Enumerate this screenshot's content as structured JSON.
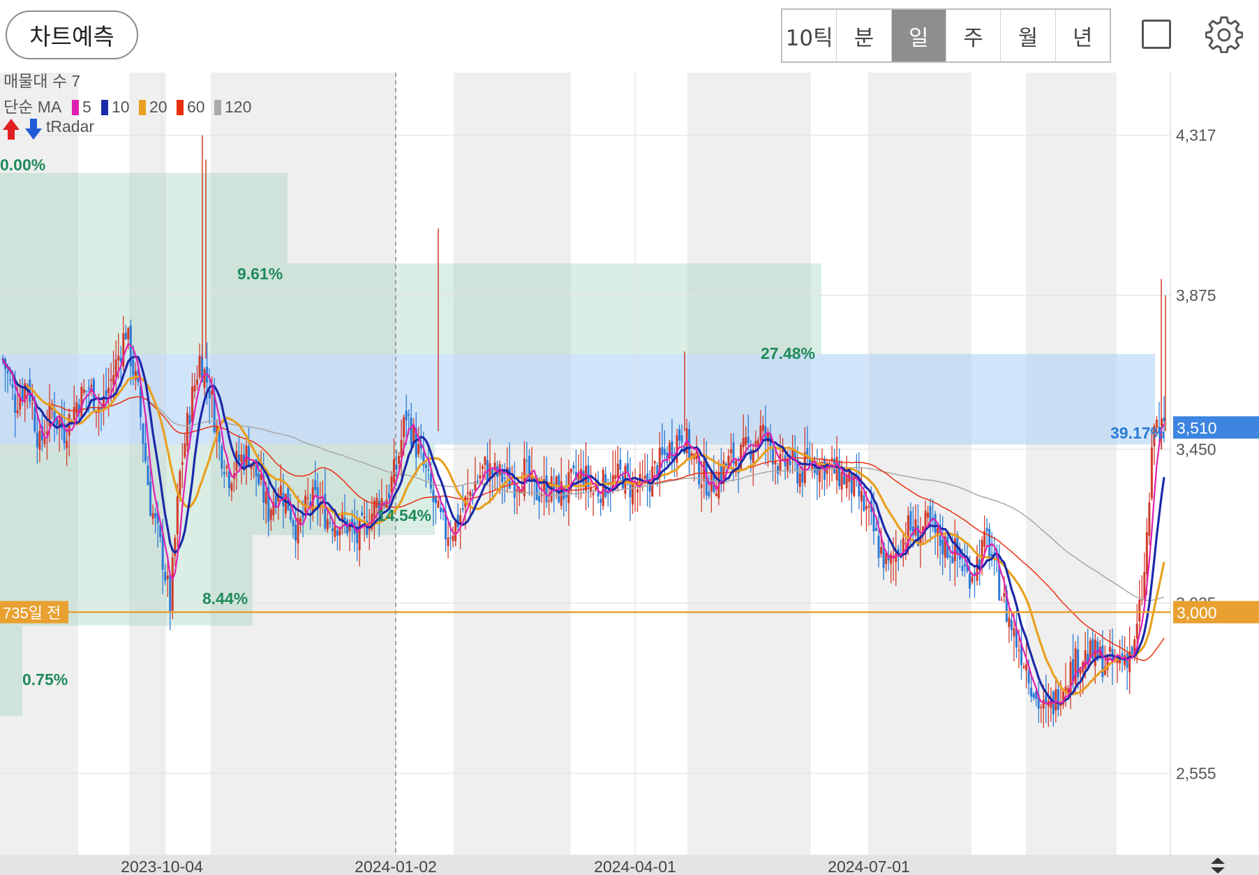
{
  "header": {
    "forecast_button": "차트예측",
    "periods": [
      {
        "label": "10틱",
        "active": false
      },
      {
        "label": "분",
        "active": false
      },
      {
        "label": "일",
        "active": true
      },
      {
        "label": "주",
        "active": false
      },
      {
        "label": "월",
        "active": false
      },
      {
        "label": "년",
        "active": false
      }
    ],
    "icons": {
      "checkbox": "square-icon",
      "settings": "gear-icon"
    }
  },
  "chart_data": {
    "type": "candlestick",
    "indicators": {
      "volume_profile": "매물대 수 7",
      "ma_label": "단순 MA",
      "ma_periods": [
        {
          "period": "5",
          "color": "#e020b0"
        },
        {
          "period": "10",
          "color": "#1a2aa8"
        },
        {
          "period": "20",
          "color": "#e8a020"
        },
        {
          "period": "60",
          "color": "#e83010"
        },
        {
          "period": "120",
          "color": "#aaaaaa"
        }
      ],
      "tradar": "tRadar"
    },
    "y_axis": {
      "ticks": [
        4317,
        3875,
        3450,
        3025,
        2555
      ],
      "tick_labels": [
        "4,317",
        "3,875",
        "3,450",
        "3,025",
        "2,555"
      ],
      "range": [
        2330,
        4490
      ]
    },
    "x_axis": {
      "tick_labels": [
        "2023-10-04",
        "2024-01-02",
        "2024-04-01",
        "2024-07-01"
      ]
    },
    "current_price": {
      "value": 3510,
      "label": "3,510",
      "color": "#3d85e0"
    },
    "reference_line": {
      "value": 3000,
      "label": "3,000",
      "tag": "735일 전",
      "color": "#e8a030"
    },
    "volume_profile_zones": [
      {
        "low": 3963,
        "high": 4213,
        "pct": "9.61%"
      },
      {
        "low": 3713,
        "high": 3963,
        "pct": "27.48%"
      },
      {
        "low": 3463,
        "high": 3713,
        "pct": "39.17%",
        "highlight": true
      },
      {
        "low": 3213,
        "high": 3463,
        "pct": "14.54%"
      },
      {
        "low": 2963,
        "high": 3213,
        "pct": "8.44%"
      },
      {
        "low": 2713,
        "high": 2963,
        "pct": "0.75%"
      }
    ],
    "top_pct": "0.00%",
    "price_path": [
      [
        0,
        3700
      ],
      [
        5,
        3580
      ],
      [
        10,
        3640
      ],
      [
        15,
        3460
      ],
      [
        20,
        3560
      ],
      [
        25,
        3500
      ],
      [
        30,
        3580
      ],
      [
        35,
        3620
      ],
      [
        40,
        3560
      ],
      [
        45,
        3660
      ],
      [
        50,
        3780
      ],
      [
        55,
        3600
      ],
      [
        60,
        3300
      ],
      [
        65,
        3150
      ],
      [
        68,
        3020
      ],
      [
        72,
        3380
      ],
      [
        76,
        3560
      ],
      [
        80,
        3700
      ],
      [
        84,
        3620
      ],
      [
        88,
        3460
      ],
      [
        92,
        3380
      ],
      [
        96,
        3420
      ],
      [
        100,
        3440
      ],
      [
        104,
        3360
      ],
      [
        108,
        3280
      ],
      [
        112,
        3350
      ],
      [
        116,
        3300
      ],
      [
        120,
        3220
      ],
      [
        124,
        3300
      ],
      [
        128,
        3310
      ],
      [
        132,
        3260
      ],
      [
        136,
        3250
      ],
      [
        140,
        3240
      ],
      [
        144,
        3200
      ],
      [
        148,
        3250
      ],
      [
        152,
        3300
      ],
      [
        156,
        3320
      ],
      [
        160,
        3400
      ],
      [
        164,
        3550
      ],
      [
        168,
        3460
      ],
      [
        172,
        3380
      ],
      [
        176,
        3280
      ],
      [
        180,
        3220
      ],
      [
        184,
        3240
      ],
      [
        188,
        3300
      ],
      [
        192,
        3360
      ],
      [
        196,
        3400
      ],
      [
        200,
        3380
      ],
      [
        204,
        3370
      ],
      [
        208,
        3360
      ],
      [
        212,
        3390
      ],
      [
        216,
        3330
      ],
      [
        220,
        3340
      ],
      [
        224,
        3340
      ],
      [
        228,
        3330
      ],
      [
        232,
        3360
      ],
      [
        236,
        3380
      ],
      [
        240,
        3330
      ],
      [
        244,
        3350
      ],
      [
        248,
        3360
      ],
      [
        252,
        3380
      ],
      [
        256,
        3340
      ],
      [
        260,
        3340
      ],
      [
        264,
        3380
      ],
      [
        268,
        3420
      ],
      [
        272,
        3460
      ],
      [
        276,
        3500
      ],
      [
        280,
        3430
      ],
      [
        284,
        3380
      ],
      [
        288,
        3350
      ],
      [
        292,
        3390
      ],
      [
        296,
        3420
      ],
      [
        300,
        3430
      ],
      [
        304,
        3460
      ],
      [
        308,
        3500
      ],
      [
        312,
        3460
      ],
      [
        316,
        3400
      ],
      [
        320,
        3420
      ],
      [
        324,
        3380
      ],
      [
        328,
        3420
      ],
      [
        332,
        3410
      ],
      [
        336,
        3400
      ],
      [
        340,
        3380
      ],
      [
        344,
        3360
      ],
      [
        348,
        3320
      ],
      [
        352,
        3260
      ],
      [
        356,
        3180
      ],
      [
        360,
        3120
      ],
      [
        364,
        3180
      ],
      [
        368,
        3230
      ],
      [
        372,
        3220
      ],
      [
        376,
        3240
      ],
      [
        380,
        3200
      ],
      [
        384,
        3180
      ],
      [
        388,
        3160
      ],
      [
        392,
        3100
      ],
      [
        396,
        3140
      ],
      [
        400,
        3200
      ],
      [
        404,
        3100
      ],
      [
        408,
        3000
      ],
      [
        412,
        2920
      ],
      [
        416,
        2860
      ],
      [
        420,
        2760
      ],
      [
        424,
        2720
      ],
      [
        428,
        2760
      ],
      [
        432,
        2820
      ],
      [
        436,
        2860
      ],
      [
        440,
        2880
      ],
      [
        444,
        2880
      ],
      [
        448,
        2860
      ],
      [
        452,
        2860
      ],
      [
        456,
        2880
      ],
      [
        460,
        2900
      ],
      [
        464,
        3100
      ],
      [
        468,
        3520
      ],
      [
        472,
        3500
      ]
    ],
    "signals": {
      "blue": [
        [
          140,
          3900
        ],
        [
          144,
          3820
        ],
        [
          234,
          3960
        ],
        [
          255,
          4170
        ],
        [
          263,
          3840
        ],
        [
          148,
          3810
        ],
        [
          541,
          3640
        ],
        [
          556,
          3660
        ],
        [
          560,
          3560
        ],
        [
          708,
          3460
        ],
        [
          712,
          3400
        ],
        [
          820,
          3560
        ],
        [
          833,
          3660
        ],
        [
          823,
          3490
        ],
        [
          844,
          3490
        ],
        [
          857,
          3500
        ],
        [
          945,
          3540
        ],
        [
          973,
          3530
        ],
        [
          998,
          3460
        ],
        [
          1013,
          3460
        ],
        [
          1237,
          3270
        ],
        [
          1242,
          3220
        ],
        [
          1398,
          2930
        ],
        [
          1425,
          2950
        ]
      ],
      "red": [
        [
          134,
          3620
        ],
        [
          240,
          3430
        ],
        [
          216,
          3280
        ],
        [
          503,
          3240
        ],
        [
          530,
          3310
        ],
        [
          491,
          3020
        ],
        [
          686,
          3300
        ],
        [
          702,
          3320
        ],
        [
          795,
          3260
        ],
        [
          815,
          3300
        ],
        [
          829,
          3300
        ],
        [
          993,
          3260
        ],
        [
          936,
          3390
        ],
        [
          1008,
          3380
        ],
        [
          1394,
          2830
        ],
        [
          1431,
          2810
        ],
        [
          1452,
          3450
        ]
      ]
    }
  }
}
